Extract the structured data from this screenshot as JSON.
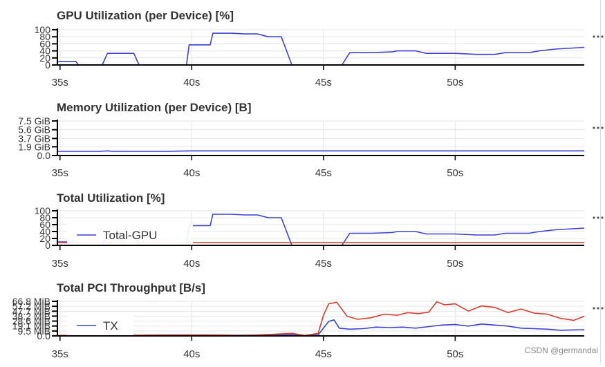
{
  "watermark": "CSDN @germandai",
  "panel_menu_icon": "ellipsis-icon",
  "colors": {
    "grid": "#e5e5e5",
    "axis": "#000000",
    "blue": "#3b3fd9",
    "red": "#d93a2b",
    "text": "#333333"
  },
  "chart_data": [
    {
      "type": "line",
      "title": "GPU Utilization (per Device) [%]",
      "xlim": [
        34.9,
        54.9
      ],
      "ylim": [
        0,
        100
      ],
      "yticks": [
        0,
        20,
        40,
        60,
        80,
        100
      ],
      "ytick_labels": [
        "0",
        "20",
        "40",
        "60",
        "80",
        "100"
      ],
      "xticks": [
        35,
        40,
        45,
        50
      ],
      "xtick_labels": [
        "35s",
        "40s",
        "45s",
        "50s"
      ],
      "grid": true,
      "legend": null,
      "series": [
        {
          "color": "#3b3fd9",
          "x": [
            34.9,
            35.6,
            35.7,
            36.6,
            36.8,
            37.8,
            38.0,
            39.8,
            39.9,
            40.7,
            40.8,
            41.5,
            42.0,
            42.5,
            42.9,
            43.4,
            43.8,
            44.3,
            45.0,
            45.7,
            46.0,
            46.8,
            47.6,
            47.8,
            48.5,
            48.9,
            50.0,
            50.8,
            51.5,
            51.9,
            52.8,
            53.2,
            53.8,
            54.9
          ],
          "y": [
            10,
            10,
            0,
            0,
            33,
            33,
            0,
            0,
            57,
            57,
            90,
            90,
            88,
            88,
            80,
            80,
            0,
            0,
            0,
            0,
            35,
            35,
            37,
            40,
            40,
            33,
            33,
            30,
            30,
            35,
            35,
            40,
            45,
            50
          ]
        }
      ]
    },
    {
      "type": "line",
      "title": "Memory Utilization (per Device) [B]",
      "xlim": [
        34.9,
        54.9
      ],
      "ylim": [
        0,
        7.5
      ],
      "yticks": [
        0,
        1.9,
        3.7,
        5.6,
        7.5
      ],
      "ytick_labels": [
        "0.0",
        "1.9 GiB",
        "3.7 GiB",
        "5.6 GiB",
        "7.5 GiB"
      ],
      "xticks": [
        35,
        40,
        45,
        50
      ],
      "xtick_labels": [
        "35s",
        "40s",
        "45s",
        "50s"
      ],
      "grid": true,
      "legend": null,
      "series": [
        {
          "color": "#3b3fd9",
          "x": [
            34.9,
            36.5,
            36.8,
            37.0,
            39.0,
            40.0,
            54.9
          ],
          "y": [
            0.9,
            0.9,
            1.0,
            0.9,
            0.9,
            1.0,
            1.0
          ]
        }
      ]
    },
    {
      "type": "line",
      "title": "Total Utilization [%]",
      "xlim": [
        34.9,
        54.9
      ],
      "ylim": [
        0,
        100
      ],
      "yticks": [
        0,
        20,
        40,
        60,
        80,
        100
      ],
      "ytick_labels": [
        "0",
        "20",
        "40",
        "60",
        "80",
        "100"
      ],
      "xticks": [
        35,
        40,
        45,
        50
      ],
      "xtick_labels": [
        "35s",
        "40s",
        "45s",
        "50s"
      ],
      "grid": true,
      "legend": {
        "label": "Total-GPU",
        "placement": "bottom-left"
      },
      "series": [
        {
          "name": "Total-GPU",
          "color": "#3b3fd9",
          "x": [
            34.9,
            35.6,
            35.7,
            36.6,
            36.8,
            37.8,
            38.0,
            39.8,
            39.9,
            40.7,
            40.8,
            41.5,
            42.0,
            42.5,
            42.9,
            43.4,
            43.8,
            44.3,
            45.0,
            45.7,
            46.0,
            46.8,
            47.6,
            47.8,
            48.5,
            48.9,
            50.0,
            50.8,
            51.5,
            51.9,
            52.8,
            53.2,
            53.8,
            54.9
          ],
          "y": [
            10,
            10,
            0,
            0,
            33,
            33,
            0,
            0,
            57,
            57,
            90,
            90,
            88,
            88,
            80,
            80,
            0,
            0,
            0,
            0,
            35,
            35,
            37,
            40,
            40,
            33,
            33,
            30,
            30,
            35,
            35,
            40,
            45,
            50
          ]
        },
        {
          "color": "#d93a2b",
          "x": [
            34.9,
            54.9
          ],
          "y": [
            8,
            8
          ]
        }
      ]
    },
    {
      "type": "line",
      "title": "Total PCI Throughput [B/s]",
      "xlim": [
        34.9,
        54.9
      ],
      "ylim": [
        0,
        66.8
      ],
      "yticks": [
        0,
        9.5,
        19.1,
        28.6,
        38.2,
        47.7,
        57.2,
        66.8
      ],
      "ytick_labels": [
        "0.0",
        "9.5 MiB",
        "19.1 MiB",
        "28.6 MiB",
        "38.2 MiB",
        "47.7 MiB",
        "57.2 MiB",
        "66.8 MiB"
      ],
      "xticks": [
        35,
        40,
        45,
        50
      ],
      "xtick_labels": [
        "35s",
        "40s",
        "45s",
        "50s"
      ],
      "grid": true,
      "legend": {
        "label": "TX",
        "placement": "bottom-left"
      },
      "series": [
        {
          "name": "TX",
          "color": "#3b3fd9",
          "x": [
            34.9,
            37.0,
            39.0,
            41.0,
            43.0,
            43.8,
            44.3,
            44.8,
            45.2,
            45.4,
            45.6,
            46.0,
            46.5,
            47.0,
            47.5,
            48.0,
            48.5,
            49.0,
            49.5,
            50.0,
            50.5,
            51.0,
            51.5,
            52.0,
            52.5,
            53.0,
            53.5,
            54.0,
            54.9
          ],
          "y": [
            1,
            1,
            1,
            1,
            2,
            3,
            1,
            2,
            28,
            31,
            15,
            13,
            14,
            17,
            16,
            17,
            15,
            18,
            21,
            22,
            19,
            23,
            21,
            19,
            15,
            14,
            13,
            11,
            12
          ]
        },
        {
          "color": "#d93a2b",
          "x": [
            34.9,
            37.0,
            39.0,
            41.0,
            42.0,
            43.0,
            43.8,
            44.3,
            44.8,
            45.0,
            45.2,
            45.5,
            45.9,
            46.3,
            46.8,
            47.3,
            47.8,
            48.2,
            48.6,
            49.0,
            49.3,
            49.6,
            50.0,
            50.5,
            51.0,
            51.5,
            52.0,
            52.5,
            53.0,
            53.5,
            54.0,
            54.5,
            54.9
          ],
          "y": [
            1,
            1,
            2,
            2,
            1,
            3,
            5,
            1,
            5,
            40,
            62,
            65,
            38,
            32,
            35,
            42,
            40,
            45,
            43,
            46,
            66,
            60,
            62,
            48,
            58,
            55,
            45,
            52,
            44,
            42,
            34,
            30,
            38
          ]
        }
      ]
    }
  ]
}
